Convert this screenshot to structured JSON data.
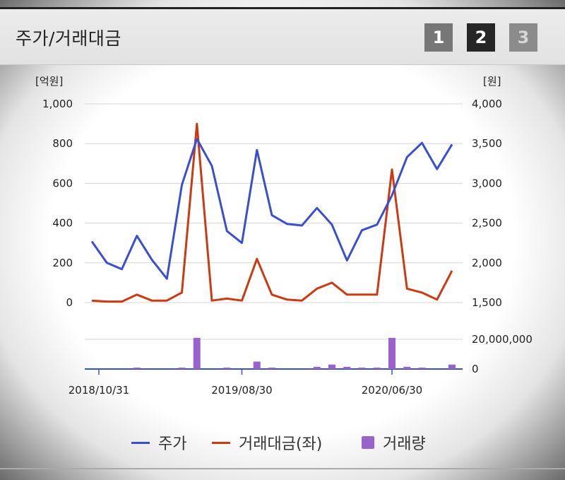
{
  "header": {
    "title": "주가/거래대금",
    "pages": [
      "1",
      "2",
      "3"
    ],
    "active_page": "2"
  },
  "colors": {
    "price": "#3a4fd0",
    "amount": "#cc3a12",
    "volume": "#9a62cc"
  },
  "chart_data": {
    "type": "line",
    "title": "",
    "x_ticks": [
      "2018/10/31",
      "2019/08/30",
      "2020/06/30"
    ],
    "y_left": {
      "unit": "[억원]",
      "ticks": [
        "1,000",
        "800",
        "600",
        "400",
        "200",
        "0"
      ],
      "range": [
        0,
        1000
      ]
    },
    "y_right": {
      "unit": "[원]",
      "ticks": [
        "4,000",
        "3,500",
        "3,000",
        "2,500",
        "2,000",
        "1,500"
      ],
      "range": [
        1500,
        4000
      ]
    },
    "volume_axis": {
      "ticks": [
        "20,000,000",
        "0"
      ],
      "range": [
        0,
        20000000
      ]
    },
    "x": [
      "2018/10/31",
      "2018/11/30",
      "2018/12/31",
      "2019/01/31",
      "2019/02/28",
      "2019/03/31",
      "2019/04/30",
      "2019/05/31",
      "2019/06/30",
      "2019/07/31",
      "2019/08/30",
      "2019/09/30",
      "2019/10/31",
      "2019/11/30",
      "2019/12/31",
      "2020/01/31",
      "2020/02/29",
      "2020/03/31",
      "2020/04/30",
      "2020/05/31",
      "2020/06/30",
      "2020/07/31",
      "2020/08/31",
      "2020/09/30",
      "2020/10/31"
    ],
    "series": [
      {
        "name": "주가",
        "axis": "right",
        "values": [
          2270,
          2000,
          1920,
          2340,
          2040,
          1800,
          2980,
          3560,
          3220,
          2400,
          2250,
          3420,
          2600,
          2490,
          2470,
          2690,
          2480,
          2030,
          2410,
          2480,
          2850,
          3330,
          3510,
          3180,
          3490
        ]
      },
      {
        "name": "거래대금(좌)",
        "axis": "left",
        "values": [
          10,
          5,
          5,
          40,
          10,
          10,
          50,
          900,
          10,
          20,
          10,
          220,
          40,
          15,
          10,
          70,
          100,
          40,
          40,
          40,
          670,
          70,
          50,
          15,
          160
        ]
      },
      {
        "name": "거래량",
        "axis": "volume",
        "values": [
          0,
          0,
          0,
          500000,
          0,
          0,
          500000,
          21000000,
          0,
          800000,
          0,
          5000000,
          800000,
          0,
          0,
          1500000,
          3000000,
          1500000,
          800000,
          800000,
          21000000,
          1500000,
          800000,
          0,
          3000000
        ]
      }
    ],
    "grid": true,
    "legend": "bottom"
  },
  "legend": {
    "price": "주가",
    "amount": "거래대금(좌)",
    "volume": "거래량"
  }
}
